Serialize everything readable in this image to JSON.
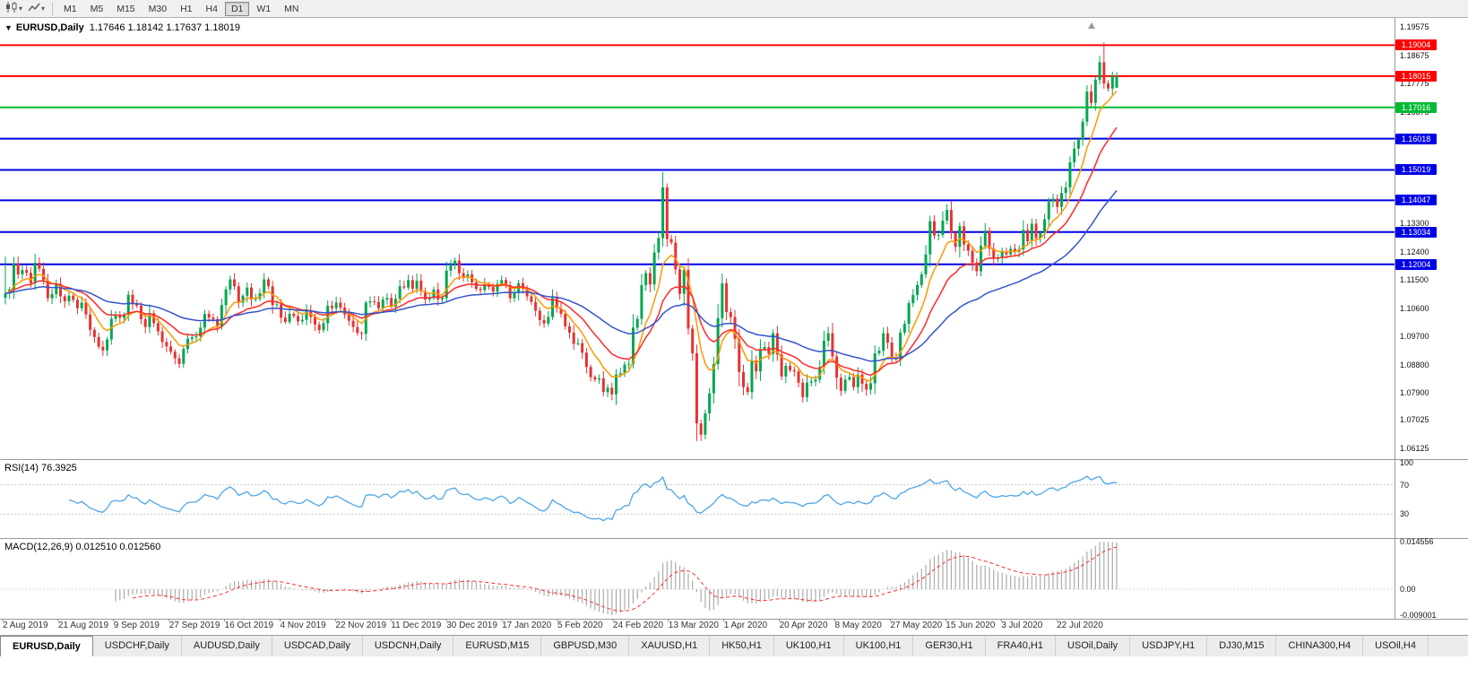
{
  "toolbar": {
    "timeframes": [
      {
        "label": "M1",
        "active": false
      },
      {
        "label": "M5",
        "active": false
      },
      {
        "label": "M15",
        "active": false
      },
      {
        "label": "M30",
        "active": false
      },
      {
        "label": "H1",
        "active": false
      },
      {
        "label": "H4",
        "active": false
      },
      {
        "label": "D1",
        "active": true
      },
      {
        "label": "W1",
        "active": false
      },
      {
        "label": "MN",
        "active": false
      }
    ]
  },
  "chart": {
    "symbol": "EURUSD,Daily",
    "ohlc_text": "1.17646 1.18142 1.17637 1.18019",
    "y_axis_labels": [
      1.19575,
      1.18675,
      1.17775,
      1.16875,
      1.133,
      1.124,
      1.115,
      1.106,
      1.097,
      1.088,
      1.079,
      1.07025,
      1.06125
    ]
  },
  "panels": {
    "rsi": {
      "label": "RSI(14) 76.3925",
      "axis": [
        {
          "label": "100",
          "value": 100
        },
        {
          "label": "70",
          "value": 70
        },
        {
          "label": "30",
          "value": 30
        }
      ],
      "dotted_levels": [
        70,
        30
      ]
    },
    "macd": {
      "label": "MACD(12,26,9) 0.012510 0.012560",
      "axis_top": "0.014556",
      "axis_zero": "0.00",
      "axis_bottom": "-0.009001"
    }
  },
  "dates": [
    "2 Aug 2019",
    "21 Aug 2019",
    "9 Sep 2019",
    "27 Sep 2019",
    "16 Oct 2019",
    "4 Nov 2019",
    "22 Nov 2019",
    "11 Dec 2019",
    "30 Dec 2019",
    "17 Jan 2020",
    "5 Feb 2020",
    "24 Feb 2020",
    "13 Mar 2020",
    "1 Apr 2020",
    "20 Apr 2020",
    "8 May 2020",
    "27 May 2020",
    "15 Jun 2020",
    "3 Jul 2020",
    "22 Jul 2020"
  ],
  "tabs": [
    {
      "label": "EURUSD,Daily",
      "active": true
    },
    {
      "label": "USDCHF,Daily",
      "active": false
    },
    {
      "label": "AUDUSD,Daily",
      "active": false
    },
    {
      "label": "USDCAD,Daily",
      "active": false
    },
    {
      "label": "USDCNH,Daily",
      "active": false
    },
    {
      "label": "EURUSD,M15",
      "active": false
    },
    {
      "label": "GBPUSD,M30",
      "active": false
    },
    {
      "label": "XAUUSD,H1",
      "active": false
    },
    {
      "label": "HK50,H1",
      "active": false
    },
    {
      "label": "UK100,H1",
      "active": false
    },
    {
      "label": "UK100,H1",
      "active": false
    },
    {
      "label": "GER30,H1",
      "active": false
    },
    {
      "label": "FRA40,H1",
      "active": false
    },
    {
      "label": "USOil,Daily",
      "active": false
    },
    {
      "label": "USDJPY,H1",
      "active": false
    },
    {
      "label": "DJ30,M15",
      "active": false
    },
    {
      "label": "CHINA300,H4",
      "active": false
    },
    {
      "label": "USOil,H4",
      "active": false
    }
  ],
  "colors": {
    "bull": "#00a650",
    "bear": "#e63232",
    "ma_fast": "#ff9900",
    "ma_mid": "#ff2a2a",
    "ma_slow": "#3355cc",
    "rsi_line": "#4da6e8",
    "macd_hist": "#ababab",
    "macd_signal": "#ff2a2a"
  },
  "chart_data": {
    "type": "candlestick",
    "symbol": "EURUSD",
    "timeframe": "Daily",
    "title": "EURUSD,Daily",
    "price_range": {
      "top": 1.1976,
      "bottom": 1.0595
    },
    "horizontal_levels": [
      {
        "price": 1.19004,
        "color": "#ff0000"
      },
      {
        "price": 1.18015,
        "color": "#ff0000"
      },
      {
        "price": 1.17016,
        "color": "#00bb33"
      },
      {
        "price": 1.16018,
        "color": "#0000e6"
      },
      {
        "price": 1.15019,
        "color": "#0000e6"
      },
      {
        "price": 1.14047,
        "color": "#0000e6"
      },
      {
        "price": 1.13034,
        "color": "#0000e6"
      },
      {
        "price": 1.12004,
        "color": "#0000e6"
      }
    ],
    "moving_averages": [
      {
        "type": "EMA",
        "period": 8,
        "color": "#ff9900"
      },
      {
        "type": "EMA",
        "period": 18,
        "color": "#ff2a2a"
      },
      {
        "type": "EMA",
        "period": 45,
        "color": "#3355cc"
      }
    ],
    "indicators": [
      {
        "name": "RSI",
        "period": 14,
        "current": 76.3925
      },
      {
        "name": "MACD",
        "fast": 12,
        "slow": 26,
        "signal": 9,
        "current_main": 0.01251,
        "current_signal": 0.01256
      }
    ],
    "closes": [
      1.1108,
      1.112,
      1.1203,
      1.1168,
      1.1182,
      1.1173,
      1.114,
      1.1205,
      1.1186,
      1.115,
      1.1092,
      1.1105,
      1.1138,
      1.1098,
      1.1082,
      1.11,
      1.1087,
      1.106,
      1.1078,
      1.104,
      1.0991,
      1.0968,
      1.0937,
      1.0925,
      1.096,
      1.1026,
      1.1038,
      1.1029,
      1.104,
      1.1103,
      1.1073,
      1.1068,
      1.1025,
      1.1,
      1.1044,
      1.1012,
      1.0986,
      1.0952,
      1.0938,
      1.0921,
      1.09,
      1.0882,
      1.093,
      1.0962,
      1.0967,
      1.097,
      1.0998,
      1.1042,
      1.103,
      1.1025,
      1.1003,
      1.107,
      1.112,
      1.1152,
      1.113,
      1.1078,
      1.11,
      1.1126,
      1.1088,
      1.109,
      1.1108,
      1.1152,
      1.113,
      1.107,
      1.1072,
      1.103,
      1.1016,
      1.1042,
      1.1035,
      1.1018,
      1.1023,
      1.1052,
      1.1032,
      1.1008,
      1.099,
      1.1012,
      1.1068,
      1.106,
      1.1078,
      1.1062,
      1.104,
      1.102,
      1.1,
      1.0981,
      1.0978,
      1.1078,
      1.1082,
      1.108,
      1.106,
      1.1088,
      1.1093,
      1.1065,
      1.109,
      1.113,
      1.1126,
      1.115,
      1.1122,
      1.1148,
      1.1114,
      1.1088,
      1.1092,
      1.112,
      1.1088,
      1.1092,
      1.118,
      1.12,
      1.1212,
      1.1172,
      1.116,
      1.1168,
      1.1143,
      1.1122,
      1.1118,
      1.1136,
      1.1128,
      1.1113,
      1.1138,
      1.115,
      1.1134,
      1.1092,
      1.1108,
      1.114,
      1.1122,
      1.1098,
      1.108,
      1.1052,
      1.1022,
      1.1011,
      1.1032,
      1.1093,
      1.106,
      1.1042,
      1.1002,
      1.0982,
      1.0946,
      1.0948,
      1.0918,
      1.0872,
      1.084,
      1.0832,
      1.0836,
      1.0792,
      1.0806,
      1.0785,
      1.0848,
      1.0852,
      1.088,
      1.0882,
      1.0998,
      1.1026,
      1.1134,
      1.1172,
      1.1136,
      1.1238,
      1.1284,
      1.1446,
      1.1281,
      1.127,
      1.1184,
      1.1106,
      1.1182,
      1.0995,
      1.0916,
      1.0692,
      1.0656,
      1.0724,
      1.0788,
      1.0882,
      1.1028,
      1.114,
      1.1048,
      1.1032,
      1.0962,
      1.0856,
      1.0808,
      1.0792,
      1.0892,
      1.0858,
      1.093,
      1.0936,
      1.0914,
      1.098,
      1.0912,
      1.0842,
      1.0876,
      1.0862,
      1.0858,
      1.0822,
      1.0776,
      1.0822,
      1.0826,
      1.0832,
      1.0872,
      1.0956,
      1.098,
      1.0906,
      1.0838,
      1.0796,
      1.0832,
      1.084,
      1.0808,
      1.0848,
      1.0818,
      1.08,
      1.082,
      1.0916,
      1.0924,
      1.098,
      1.095,
      1.0902,
      1.0896,
      1.0982,
      1.101,
      1.1076,
      1.1102,
      1.1134,
      1.1168,
      1.1232,
      1.1338,
      1.1292,
      1.1294,
      1.134,
      1.1374,
      1.13,
      1.1256,
      1.1322,
      1.1264,
      1.1244,
      1.1206,
      1.1178,
      1.126,
      1.1308,
      1.125,
      1.1218,
      1.122,
      1.1242,
      1.1232,
      1.125,
      1.124,
      1.1248,
      1.131,
      1.1274,
      1.133,
      1.1284,
      1.13,
      1.1344,
      1.14,
      1.141,
      1.1384,
      1.1428,
      1.1446,
      1.1526,
      1.157,
      1.1598,
      1.1656,
      1.1752,
      1.1716,
      1.179,
      1.1846,
      1.1778,
      1.1762,
      1.1803,
      1.18019
    ],
    "wick_overrides": [
      {
        "index": 0,
        "high": 1.1225,
        "low": 1.1072
      },
      {
        "index": 155,
        "high": 1.1495
      },
      {
        "index": 164,
        "low": 1.0636
      },
      {
        "index": 259,
        "high": 1.1909
      }
    ],
    "last_candle": {
      "open": 1.17646,
      "high": 1.18142,
      "low": 1.17637,
      "close": 1.18019
    }
  }
}
